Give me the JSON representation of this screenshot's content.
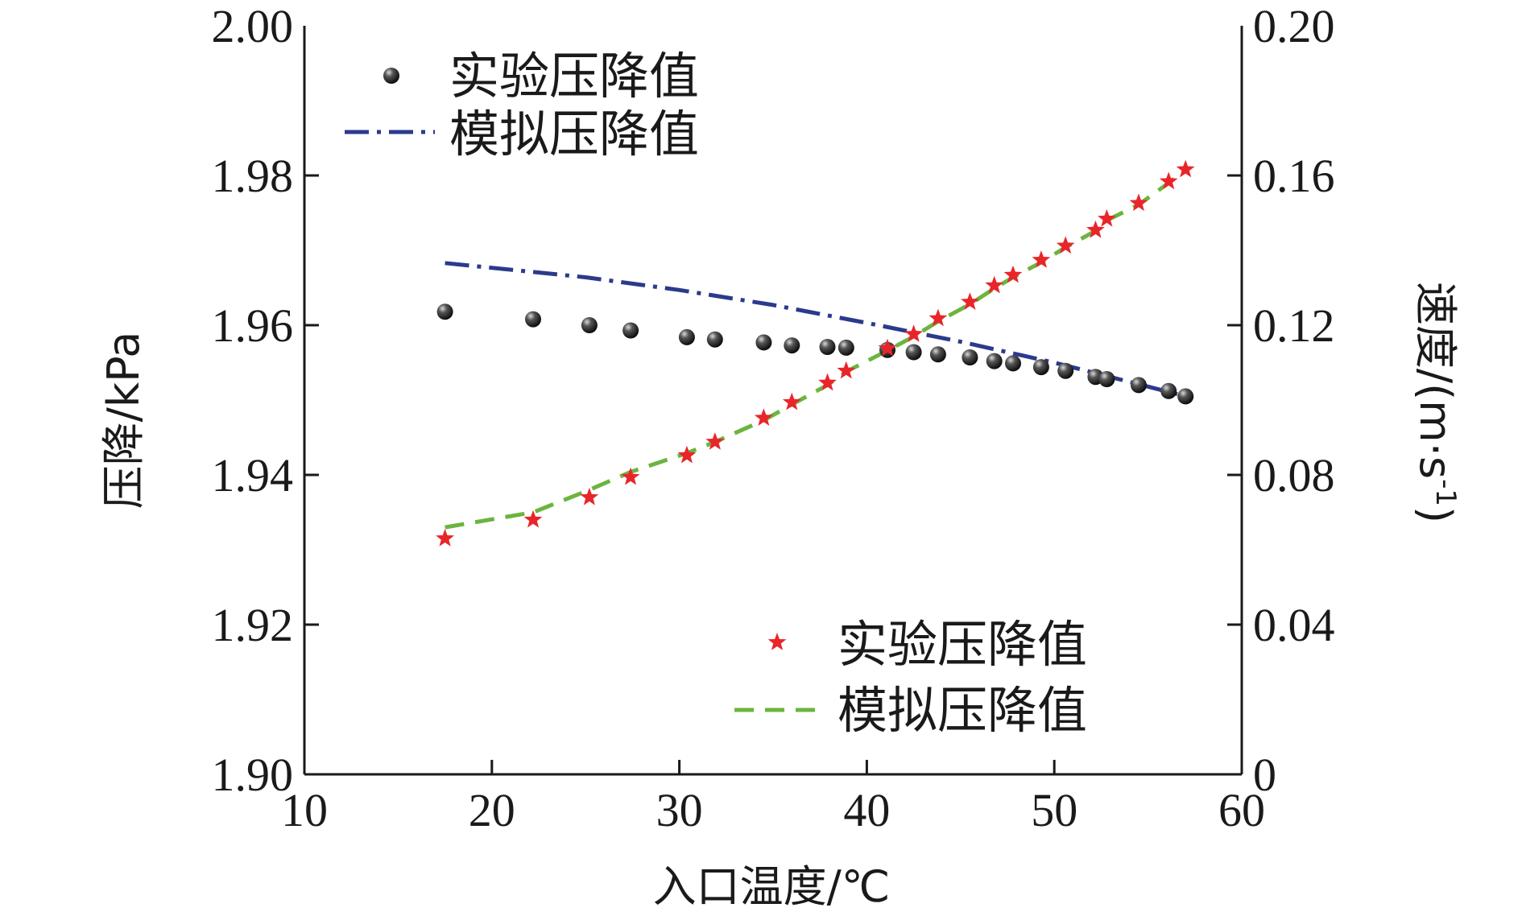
{
  "chart_data": {
    "type": "scatter",
    "xlabel": "入口温度/℃",
    "ylabel_left": "压降/kPa",
    "ylabel_right": "速度/(m·s",
    "ylabel_right_sup": "-1",
    "ylabel_right_close": ")",
    "xlim": [
      10,
      60
    ],
    "ylim_left": [
      1.9,
      2.0
    ],
    "ylim_right": [
      0,
      0.2
    ],
    "x_ticks": [
      "10",
      "20",
      "30",
      "40",
      "50",
      "60"
    ],
    "y_left_ticks": [
      "1.90",
      "1.92",
      "1.94",
      "1.96",
      "1.98",
      "2.00"
    ],
    "y_right_ticks": [
      "0",
      "0.04",
      "0.08",
      "0.12",
      "0.16",
      "0.20"
    ],
    "grid": false,
    "legends": [
      {
        "placement": "top-left",
        "entries": [
          {
            "label": "实验压降值",
            "marker": "sphere",
            "color": "#111111"
          },
          {
            "label": "模拟压降值",
            "line": "dash-dot",
            "color": "#2b3a8c"
          }
        ]
      },
      {
        "placement": "bottom-right",
        "entries": [
          {
            "label": "实验压降值",
            "marker": "star",
            "color": "#e8262a"
          },
          {
            "label": "模拟压降值",
            "line": "dashed",
            "color": "#6cb43f"
          }
        ]
      }
    ],
    "series": [
      {
        "name": "实验压降值",
        "axis": "left",
        "style": "sphere",
        "color": "#111111",
        "x": [
          17.5,
          22.2,
          25.2,
          27.4,
          30.4,
          31.9,
          34.5,
          36.0,
          37.9,
          38.9,
          41.1,
          42.5,
          43.8,
          45.5,
          46.8,
          47.8,
          49.3,
          50.6,
          52.2,
          52.8,
          54.5,
          56.1,
          57.0
        ],
        "y": [
          1.9618,
          1.9608,
          1.96,
          1.9593,
          1.9584,
          1.9581,
          1.9577,
          1.9573,
          1.9571,
          1.957,
          1.9567,
          1.9564,
          1.9561,
          1.9557,
          1.9552,
          1.9549,
          1.9544,
          1.9539,
          1.9531,
          1.9528,
          1.952,
          1.9512,
          1.9505
        ]
      },
      {
        "name": "模拟压降值",
        "axis": "left",
        "style": "dash-dot",
        "color": "#2b3a8c",
        "x": [
          17.5,
          25.0,
          30.0,
          35.0,
          40.0,
          45.0,
          50.0,
          55.0,
          57.0
        ],
        "y": [
          1.9683,
          1.9664,
          1.9647,
          1.9627,
          1.9603,
          1.9578,
          1.955,
          1.9518,
          1.9505
        ]
      },
      {
        "name": "实验压降值",
        "axis": "right",
        "style": "star",
        "color": "#e8262a",
        "x": [
          17.5,
          22.2,
          25.2,
          27.4,
          30.4,
          31.9,
          34.5,
          36.0,
          37.9,
          38.9,
          41.1,
          42.5,
          43.8,
          45.5,
          46.8,
          47.8,
          49.3,
          50.6,
          52.2,
          52.8,
          54.5,
          56.1,
          57.0
        ],
        "y": [
          0.063,
          0.068,
          0.074,
          0.0794,
          0.0852,
          0.0888,
          0.0952,
          0.0994,
          0.1046,
          0.1078,
          0.1138,
          0.1176,
          0.1218,
          0.1262,
          0.1306,
          0.1334,
          0.1374,
          0.1412,
          0.1454,
          0.1484,
          0.1526,
          0.1584,
          0.1616
        ]
      },
      {
        "name": "模拟压降值",
        "axis": "right",
        "style": "dashed",
        "color": "#6cb43f",
        "x": [
          17.5,
          22.2,
          25.2,
          27.4,
          30.4,
          31.9,
          34.5,
          36.0,
          37.9,
          38.9,
          41.1,
          42.5,
          43.8,
          45.5,
          46.8,
          47.8,
          49.3,
          50.6,
          52.2,
          52.8,
          54.5,
          56.1,
          57.0
        ],
        "y": [
          0.066,
          0.07,
          0.076,
          0.0808,
          0.0858,
          0.0888,
          0.0946,
          0.0988,
          0.104,
          0.1076,
          0.1132,
          0.117,
          0.121,
          0.1256,
          0.1298,
          0.1328,
          0.1368,
          0.1408,
          0.1452,
          0.148,
          0.1522,
          0.158,
          0.1616
        ]
      }
    ]
  }
}
